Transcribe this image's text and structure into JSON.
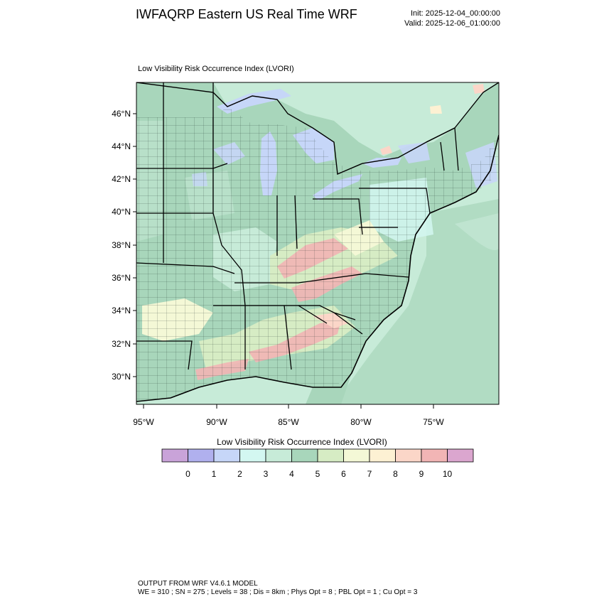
{
  "header": {
    "title": "IWFAQRP Eastern US Real Time WRF",
    "init": "Init: 2025-12-04_00:00:00",
    "valid": "Valid: 2025-12-06_01:00:00"
  },
  "map": {
    "subtitle": "Low Visibility Risk Occurrence Index   (LVORI)",
    "lat_ticks": [
      "46°N",
      "44°N",
      "42°N",
      "40°N",
      "38°N",
      "36°N",
      "34°N",
      "32°N",
      "30°N"
    ],
    "lon_ticks": [
      "95°W",
      "90°W",
      "85°W",
      "80°W",
      "75°W"
    ]
  },
  "colorbar": {
    "title": "Low Visibility Risk Occurrence Index  (LVORI)",
    "labels": [
      "0",
      "1",
      "2",
      "3",
      "4",
      "5",
      "6",
      "7",
      "8",
      "9",
      "10"
    ],
    "colors": [
      "#c9a3d9",
      "#b0b0ee",
      "#c6d6f8",
      "#d3f7f1",
      "#c7ebd8",
      "#a8d6bb",
      "#d6ecc4",
      "#f4f8d6",
      "#fdf1d3",
      "#fbd6c8",
      "#f2b5b5",
      "#dba6cf"
    ]
  },
  "footer": {
    "line1": "OUTPUT FROM WRF V4.6.1 MODEL",
    "line2": "WE = 310 ; SN = 275 ; Levels = 38 ; Dis = 8km ; Phys Opt = 8 ; PBL Opt = 1 ; Cu Opt = 3"
  }
}
